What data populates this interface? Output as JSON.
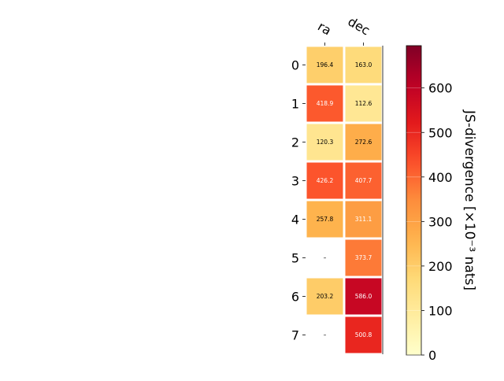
{
  "chart_data": {
    "type": "heatmap",
    "columns": [
      "ra",
      "dec"
    ],
    "rows": [
      "0",
      "1",
      "2",
      "3",
      "4",
      "5",
      "6",
      "7"
    ],
    "values": [
      [
        196.4,
        163.0
      ],
      [
        418.9,
        112.6
      ],
      [
        120.3,
        272.6
      ],
      [
        426.2,
        407.7
      ],
      [
        257.8,
        311.1
      ],
      [
        null,
        373.7
      ],
      [
        203.2,
        586.0
      ],
      [
        null,
        500.8
      ]
    ],
    "cell_labels": [
      [
        "196.4",
        "163.0"
      ],
      [
        "418.9",
        "112.6"
      ],
      [
        "120.3",
        "272.6"
      ],
      [
        "426.2",
        "407.7"
      ],
      [
        "257.8",
        "311.1"
      ],
      [
        "–",
        "373.7"
      ],
      [
        "203.2",
        "586.0"
      ],
      [
        "–",
        "500.8"
      ]
    ],
    "missing_label": "–",
    "colorbar": {
      "label": "JS-divergence [×10⁻³ nats]",
      "range": [
        0,
        695
      ],
      "ticks": [
        0,
        100,
        200,
        300,
        400,
        500,
        600
      ],
      "colormap": "YlOrRd"
    },
    "grid": false
  }
}
